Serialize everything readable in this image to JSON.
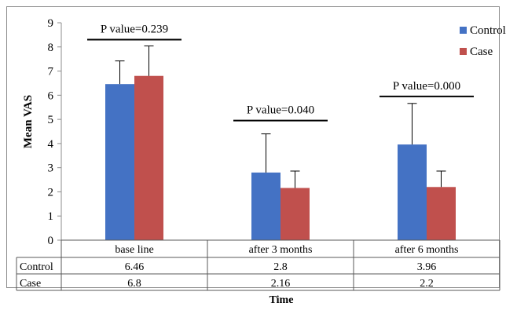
{
  "chart_data": {
    "type": "bar",
    "categories": [
      "base line",
      "after 3 months",
      "after 6 months"
    ],
    "series": [
      {
        "name": "Control",
        "values": [
          6.46,
          2.8,
          3.96
        ],
        "error_upper": [
          7.42,
          4.4,
          5.66
        ],
        "color": "#4472c4"
      },
      {
        "name": "Case",
        "values": [
          6.8,
          2.16,
          2.2
        ],
        "error_upper": [
          8.04,
          2.86,
          2.86
        ],
        "color": "#c0504d"
      }
    ],
    "table_rows": [
      {
        "label": "Control",
        "values": [
          "6.46",
          "2.8",
          "3.96"
        ]
      },
      {
        "label": "Case",
        "values": [
          "6.8",
          "2.16",
          "2.2"
        ]
      }
    ],
    "annotations": [
      "P value=0.239",
      "P value=0.040",
      "P value=0.000"
    ],
    "ylabel": "Mean VAS",
    "xlabel": "Time",
    "ylim": [
      0,
      9
    ],
    "yticks": [
      0,
      1,
      2,
      3,
      4,
      5,
      6,
      7,
      8,
      9
    ],
    "legend_position": "top-right",
    "grid": false
  }
}
